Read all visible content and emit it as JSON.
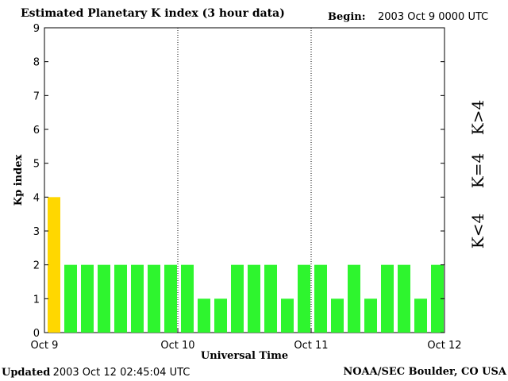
{
  "header": {
    "title": "Estimated Planetary K index (3 hour data)",
    "begin_label": "Begin:",
    "begin_value": "2003 Oct 9 0000 UTC"
  },
  "footer": {
    "updated_label": "Updated",
    "updated_value": "2003 Oct 12 02:45:04 UTC",
    "source": "NOAA/SEC Boulder, CO USA"
  },
  "chart_data": {
    "type": "bar",
    "title": "Estimated Planetary K index (3 hour data)",
    "xlabel": "Universal Time",
    "ylabel": "Kp index",
    "ylim": [
      0,
      9
    ],
    "yticks": [
      "0",
      "1",
      "2",
      "3",
      "4",
      "5",
      "6",
      "7",
      "8",
      "9"
    ],
    "xticks": [
      "Oct 9",
      "Oct 10",
      "Oct 11",
      "Oct 12"
    ],
    "grid": "dotted vertical lines at day boundaries",
    "bars_per_day": 8,
    "values": [
      4,
      2,
      2,
      2,
      2,
      2,
      2,
      2,
      2,
      1,
      1,
      2,
      2,
      2,
      1,
      2,
      2,
      1,
      2,
      1,
      2,
      2,
      1,
      2
    ],
    "legend": [
      {
        "label": "K>4",
        "color": "#ff2a00"
      },
      {
        "label": "K=4",
        "color": "#ffd700"
      },
      {
        "label": "K<4",
        "color": "#2ef52e"
      }
    ],
    "colors": {
      "below": "#2ef52e",
      "equal": "#ffd700",
      "above": "#ff2a00"
    }
  }
}
